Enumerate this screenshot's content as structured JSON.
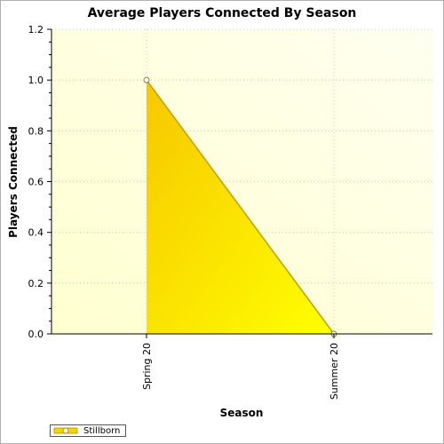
{
  "chart_data": {
    "type": "area",
    "title": "Average Players Connected By Season",
    "xlabel": "Season",
    "ylabel": "Players Connected",
    "categories": [
      "Spring 20",
      "Summer 20"
    ],
    "series": [
      {
        "name": "Stillborn",
        "values": [
          1.0,
          0.0
        ],
        "color": "#f4d500"
      }
    ],
    "ylim": [
      0,
      1.2
    ],
    "yticks": [
      "0.0",
      "0.2",
      "0.4",
      "0.6",
      "0.8",
      "1.0",
      "1.2"
    ],
    "grid": true,
    "legend_position": "bottom-left",
    "plot_background": "#ffffe0"
  }
}
